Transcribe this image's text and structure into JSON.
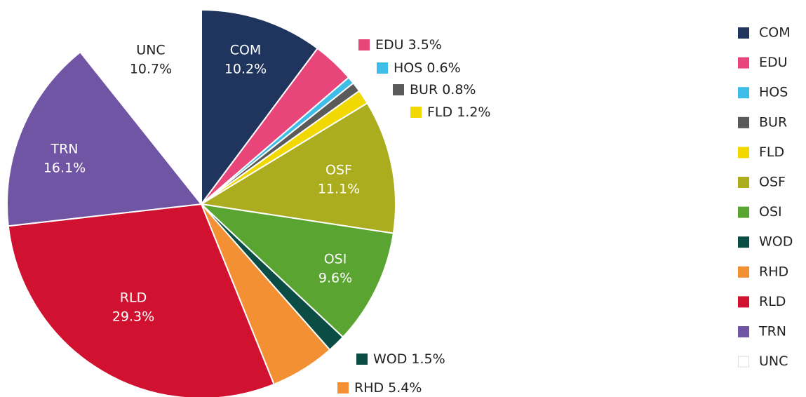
{
  "chart_data": {
    "type": "pie",
    "categories": [
      "COM",
      "EDU",
      "HOS",
      "BUR",
      "FLD",
      "OSF",
      "OSI",
      "WOD",
      "RHD",
      "RLD",
      "TRN",
      "UNC"
    ],
    "values": [
      10.2,
      3.5,
      0.6,
      0.8,
      1.2,
      11.1,
      9.6,
      1.5,
      5.4,
      29.3,
      16.1,
      10.7
    ],
    "value_labels": [
      "10.2%",
      "3.5%",
      "0.6%",
      "0.8%",
      "1.2%",
      "11.1%",
      "9.6%",
      "1.5%",
      "5.4%",
      "29.3%",
      "16.1%",
      "10.7%"
    ],
    "colors": [
      "#1f355e",
      "#e8457a",
      "#3dbde8",
      "#5a5a5a",
      "#f0d800",
      "#abad1e",
      "#5aa532",
      "#0b4d44",
      "#f39033",
      "#d01130",
      "#6f55a3",
      "#ffffff"
    ],
    "legend": "right"
  }
}
